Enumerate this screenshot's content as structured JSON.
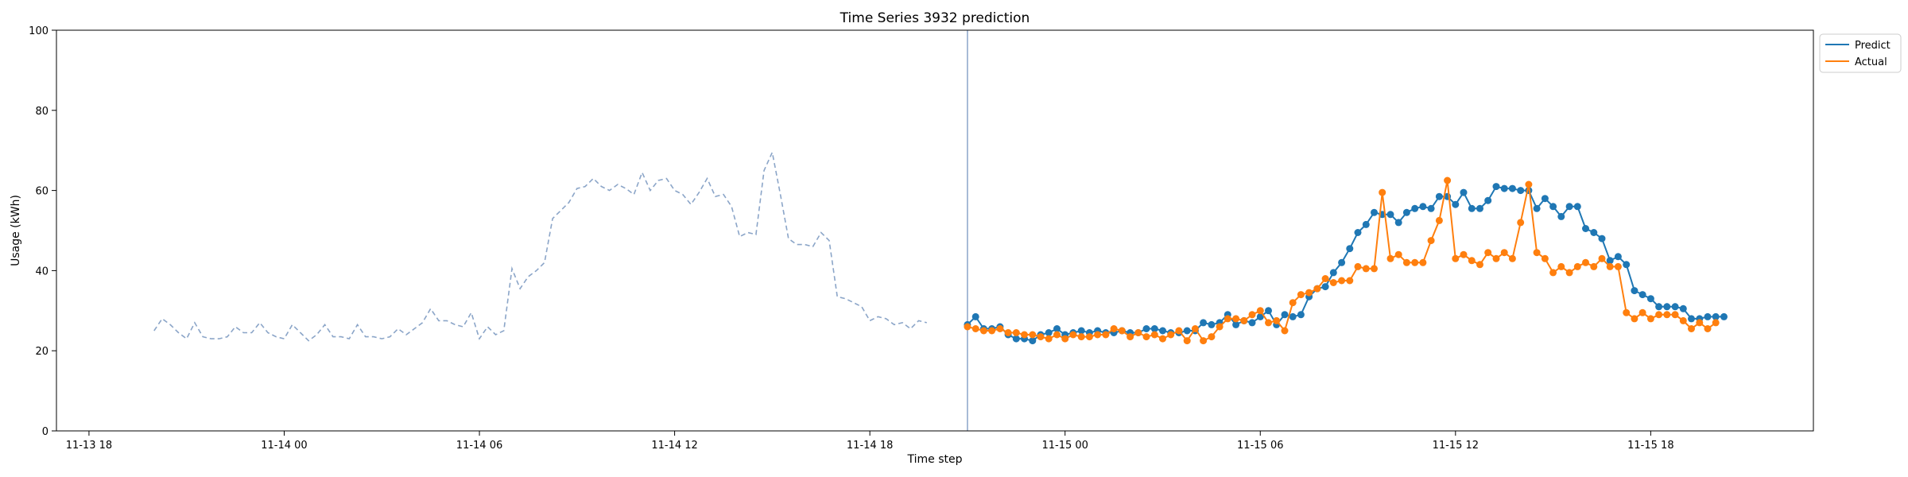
{
  "chart_data": {
    "type": "line",
    "title": "Time Series 3932 prediction",
    "xlabel": "Time step",
    "ylabel": "Usage (kWh)",
    "ylim": [
      0,
      100
    ],
    "yticks": [
      0,
      20,
      40,
      60,
      80,
      100
    ],
    "xlim": [
      "2024-11-13T17:00",
      "2024-11-15T23:00"
    ],
    "xticks": [
      {
        "label": "11-13 18",
        "t": "2024-11-13T18:00"
      },
      {
        "label": "11-14 00",
        "t": "2024-11-14T00:00"
      },
      {
        "label": "11-14 06",
        "t": "2024-11-14T06:00"
      },
      {
        "label": "11-14 12",
        "t": "2024-11-14T12:00"
      },
      {
        "label": "11-14 18",
        "t": "2024-11-14T18:00"
      },
      {
        "label": "11-15 00",
        "t": "2024-11-15T00:00"
      },
      {
        "label": "11-15 06",
        "t": "2024-11-15T06:00"
      },
      {
        "label": "11-15 12",
        "t": "2024-11-15T12:00"
      },
      {
        "label": "11-15 18",
        "t": "2024-11-15T18:00"
      }
    ],
    "legend_position": "outside-top-right",
    "forecast_start": "2024-11-14T21:00",
    "step_minutes": 15,
    "history": {
      "start": "2024-11-13T20:00",
      "style": "dashed",
      "color": "#8ba5c8",
      "values": [
        25,
        28,
        26.5,
        24.5,
        23,
        27,
        23.5,
        23,
        23,
        23.5,
        26,
        24.5,
        24.5,
        27,
        24.5,
        23.5,
        23,
        26.5,
        24.5,
        22.5,
        24,
        26.5,
        23.5,
        23.5,
        23,
        26.5,
        23.5,
        23.5,
        23,
        23.5,
        25.5,
        24,
        25.5,
        27,
        30.5,
        27.5,
        27.5,
        26.5,
        26,
        29.5,
        23,
        26,
        24,
        25,
        40.5,
        35.5,
        38.5,
        40,
        42,
        53,
        55,
        57,
        60.5,
        61,
        63,
        61,
        60,
        61.5,
        60.5,
        59,
        64.5,
        60,
        62.5,
        63,
        60,
        59,
        56.5,
        59.5,
        63,
        58.5,
        59,
        56,
        48.5,
        49.5,
        49,
        65,
        69.5,
        59,
        48,
        46.5,
        46.5,
        46,
        49.5,
        47.5,
        33.5,
        33,
        32,
        31,
        27.5,
        28.5,
        28,
        26.5,
        27,
        25.5,
        27.5,
        27
      ]
    },
    "series": [
      {
        "name": "Predict",
        "color": "#1f77b4",
        "values": [
          26.5,
          28.5,
          25.5,
          25.5,
          26,
          24,
          23,
          23,
          22.5,
          24,
          24.5,
          25.5,
          24,
          24.5,
          25,
          24.5,
          25,
          24.5,
          24.5,
          25,
          24.5,
          24.5,
          25.5,
          25.5,
          25,
          24.5,
          24.5,
          25,
          25,
          27,
          26.5,
          27,
          29,
          26.5,
          27.5,
          27,
          28.5,
          30,
          26.5,
          29,
          28.5,
          29,
          33.5,
          35.5,
          36,
          39.5,
          42,
          45.5,
          49.5,
          51.5,
          54.5,
          54,
          54,
          52,
          54.5,
          55.5,
          56,
          55.5,
          58.5,
          58.5,
          56.5,
          59.5,
          55.5,
          55.5,
          57.5,
          61,
          60.5,
          60.5,
          60,
          60,
          55.5,
          58,
          56,
          53.5,
          56,
          56,
          50.5,
          49.5,
          48,
          42.5,
          43.5,
          41.5,
          35,
          34,
          33,
          31,
          31,
          31,
          30.5,
          28,
          28,
          28.5,
          28.5,
          28.5
        ]
      },
      {
        "name": "Actual",
        "color": "#ff7f0e",
        "values": [
          26,
          25.5,
          25,
          25,
          25.5,
          24.5,
          24.5,
          24,
          24,
          23.5,
          23,
          24,
          23,
          24,
          23.5,
          23.5,
          24,
          24,
          25.5,
          25,
          23.5,
          24.5,
          23.5,
          24,
          23,
          24,
          25,
          22.5,
          25.5,
          22.5,
          23.5,
          26,
          28,
          28,
          27.5,
          29,
          30,
          27,
          27.5,
          25,
          32,
          34,
          34.5,
          35.5,
          38,
          37,
          37.5,
          37.5,
          41,
          40.5,
          40.5,
          59.5,
          43,
          44,
          42,
          42,
          42,
          47.5,
          52.5,
          62.5,
          43,
          44,
          42.5,
          41.5,
          44.5,
          43,
          44.5,
          43,
          52,
          61.5,
          44.5,
          43,
          39.5,
          41,
          39.5,
          41,
          42,
          41,
          43,
          41,
          41,
          29.5,
          28,
          29.5,
          28,
          29,
          29,
          29,
          27.5,
          25.5,
          27,
          25.5,
          27
        ]
      }
    ]
  }
}
